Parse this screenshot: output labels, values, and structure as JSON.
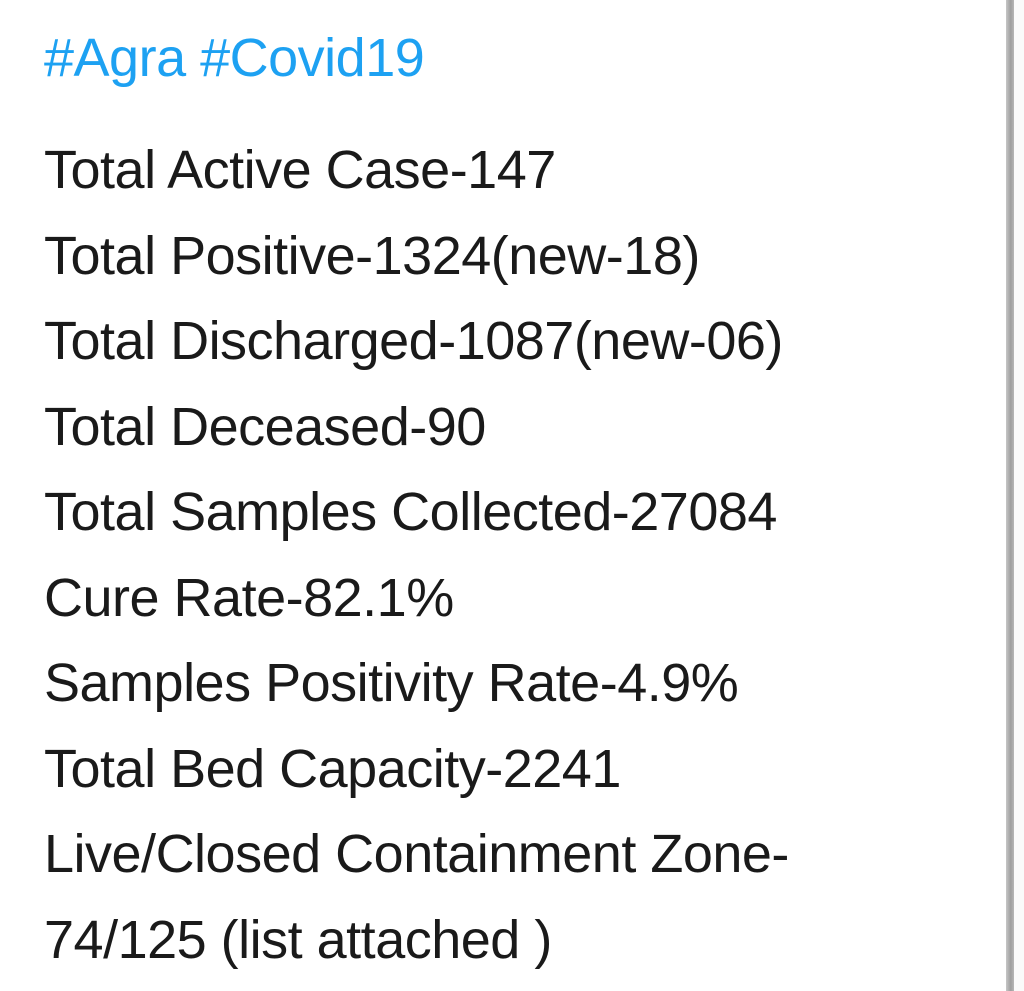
{
  "tweet": {
    "hashtags": [
      "#Agra",
      "#Covid19"
    ],
    "lines": [
      "Total Active Case-147",
      "Total Positive-1324(new-18)",
      "Total Discharged-1087(new-06)",
      "Total Deceased-90",
      "Total Samples Collected-27084",
      "Cure Rate-82.1%",
      "Samples Positivity Rate-4.9%",
      "Total Bed Capacity-2241",
      "Live/Closed Containment Zone-",
      "74/125 (list attached )"
    ]
  },
  "colors": {
    "hashtag": "#1da1f2",
    "text": "#1a1a1a",
    "background": "#ffffff"
  }
}
